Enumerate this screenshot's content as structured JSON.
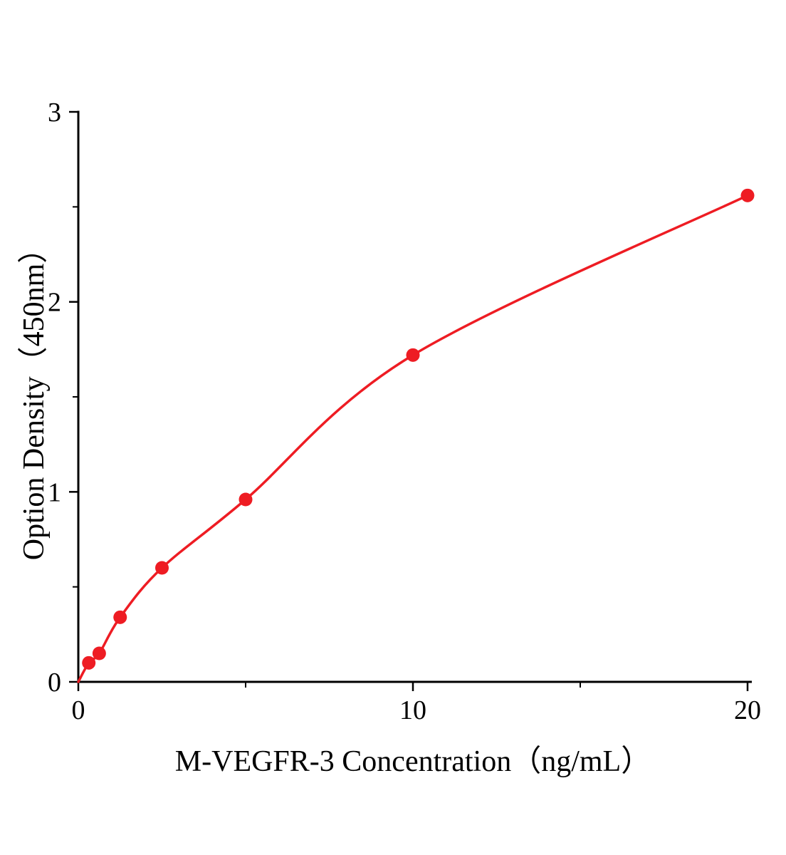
{
  "chart_data": {
    "type": "scatter",
    "title": "",
    "xlabel": "M-VEGFR-3 Concentration（ng/mL）",
    "ylabel": "Option Density（450nm）",
    "x": [
      0.313,
      0.625,
      1.25,
      2.5,
      5,
      10,
      20
    ],
    "y": [
      0.1,
      0.15,
      0.34,
      0.6,
      0.96,
      1.72,
      2.56
    ],
    "curve_through_origin": true,
    "xlim": [
      0,
      20
    ],
    "ylim": [
      0,
      3
    ],
    "x_ticks": [
      0,
      10,
      20
    ],
    "y_ticks": [
      0,
      1,
      2,
      3
    ],
    "x_minor_ticks": [
      5,
      15
    ],
    "y_minor_ticks": [
      0.5,
      1.5,
      2.5
    ],
    "line_color": "#ee1c23",
    "marker_color": "#ee1c23",
    "axis_color": "#000000",
    "grid": false,
    "legend": false
  }
}
